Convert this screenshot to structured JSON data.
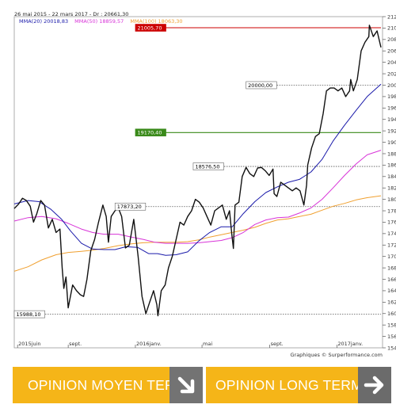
{
  "header": {
    "date_range": "26 mai 2015 - 22 mars 2017 - Dr : 20661,30",
    "legend": [
      {
        "label": "MMA(20)",
        "value": "20018,83",
        "color": "#1a1aaa"
      },
      {
        "label": "MMA(50)",
        "value": "18859,57",
        "color": "#d833d8"
      },
      {
        "label": "MMA(100)",
        "value": "18063,30",
        "color": "#f0a030"
      }
    ]
  },
  "credit": "Graphiques © Surperformance.com",
  "chart_data": {
    "type": "line",
    "title": "",
    "xlabel": "",
    "ylabel": "",
    "ylim": [
      15400,
      21200
    ],
    "y_ticks": [
      15400,
      15600,
      15800,
      16000,
      16200,
      16400,
      16600,
      16800,
      17000,
      17200,
      17400,
      17600,
      17800,
      18000,
      18200,
      18400,
      18600,
      18800,
      19000,
      19200,
      19400,
      19600,
      19800,
      20000,
      20200,
      20400,
      20600,
      20800,
      21000,
      21200
    ],
    "y_tick_labels": [
      "15400",
      "15600",
      "15800",
      "16000",
      "16200",
      "16400",
      "16600",
      "16800",
      "17000",
      "17200",
      "17400",
      "17600",
      "17800",
      "18000",
      "18200",
      "18400",
      "18600",
      "18800",
      "19000",
      "19200",
      "19400",
      "19600",
      "19800",
      "20000",
      "20200",
      "20400",
      "20600",
      "20800",
      "21000",
      "21200"
    ],
    "x_range": [
      "2015-05-26",
      "2017-03-22"
    ],
    "x_ticks": [
      {
        "date": "2015-06-01",
        "label": "2015juin"
      },
      {
        "date": "2015-09-01",
        "label": "sept."
      },
      {
        "date": "2016-01-01",
        "label": "2016janv."
      },
      {
        "date": "2016-05-01",
        "label": "mai"
      },
      {
        "date": "2016-09-01",
        "label": "sept."
      },
      {
        "date": "2017-01-01",
        "label": "2017janv."
      }
    ],
    "grid": false,
    "series": [
      {
        "name": "",
        "color": "#111111",
        "points": [
          [
            "2015-05-26",
            17840
          ],
          [
            "2015-06-03",
            17920
          ],
          [
            "2015-06-10",
            18020
          ],
          [
            "2015-06-17",
            17980
          ],
          [
            "2015-06-24",
            17880
          ],
          [
            "2015-06-30",
            17600
          ],
          [
            "2015-07-06",
            17750
          ],
          [
            "2015-07-13",
            17980
          ],
          [
            "2015-07-20",
            17900
          ],
          [
            "2015-07-27",
            17500
          ],
          [
            "2015-08-03",
            17650
          ],
          [
            "2015-08-10",
            17420
          ],
          [
            "2015-08-17",
            17480
          ],
          [
            "2015-08-21",
            16800
          ],
          [
            "2015-08-24",
            16440
          ],
          [
            "2015-08-28",
            16640
          ],
          [
            "2015-09-01",
            16100
          ],
          [
            "2015-09-09",
            16500
          ],
          [
            "2015-09-16",
            16400
          ],
          [
            "2015-09-23",
            16330
          ],
          [
            "2015-09-29",
            16300
          ],
          [
            "2015-10-05",
            16600
          ],
          [
            "2015-10-12",
            17100
          ],
          [
            "2015-10-19",
            17300
          ],
          [
            "2015-10-26",
            17600
          ],
          [
            "2015-11-03",
            17900
          ],
          [
            "2015-11-09",
            17700
          ],
          [
            "2015-11-13",
            17250
          ],
          [
            "2015-11-18",
            17700
          ],
          [
            "2015-11-25",
            17800
          ],
          [
            "2015-12-01",
            17850
          ],
          [
            "2015-12-07",
            17700
          ],
          [
            "2015-12-14",
            17150
          ],
          [
            "2015-12-21",
            17200
          ],
          [
            "2015-12-29",
            17650
          ],
          [
            "2016-01-06",
            17000
          ],
          [
            "2016-01-13",
            16300
          ],
          [
            "2016-01-20",
            16000
          ],
          [
            "2016-01-27",
            16200
          ],
          [
            "2016-02-03",
            16400
          ],
          [
            "2016-02-09",
            16150
          ],
          [
            "2016-02-11",
            15960
          ],
          [
            "2016-02-17",
            16400
          ],
          [
            "2016-02-24",
            16500
          ],
          [
            "2016-03-01",
            16800
          ],
          [
            "2016-03-08",
            17000
          ],
          [
            "2016-03-15",
            17300
          ],
          [
            "2016-03-22",
            17600
          ],
          [
            "2016-03-29",
            17550
          ],
          [
            "2016-04-05",
            17700
          ],
          [
            "2016-04-12",
            17800
          ],
          [
            "2016-04-19",
            18000
          ],
          [
            "2016-04-26",
            17950
          ],
          [
            "2016-05-03",
            17850
          ],
          [
            "2016-05-10",
            17700
          ],
          [
            "2016-05-17",
            17550
          ],
          [
            "2016-05-24",
            17800
          ],
          [
            "2016-05-31",
            17850
          ],
          [
            "2016-06-07",
            17900
          ],
          [
            "2016-06-14",
            17650
          ],
          [
            "2016-06-20",
            17800
          ],
          [
            "2016-06-24",
            17400
          ],
          [
            "2016-06-27",
            17140
          ],
          [
            "2016-06-30",
            17900
          ],
          [
            "2016-07-07",
            17950
          ],
          [
            "2016-07-13",
            18400
          ],
          [
            "2016-07-20",
            18560
          ],
          [
            "2016-07-27",
            18450
          ],
          [
            "2016-08-03",
            18400
          ],
          [
            "2016-08-10",
            18550
          ],
          [
            "2016-08-17",
            18560
          ],
          [
            "2016-08-24",
            18500
          ],
          [
            "2016-08-31",
            18420
          ],
          [
            "2016-09-07",
            18530
          ],
          [
            "2016-09-09",
            18100
          ],
          [
            "2016-09-14",
            18050
          ],
          [
            "2016-09-21",
            18300
          ],
          [
            "2016-09-28",
            18250
          ],
          [
            "2016-10-05",
            18200
          ],
          [
            "2016-10-12",
            18150
          ],
          [
            "2016-10-19",
            18200
          ],
          [
            "2016-10-26",
            18150
          ],
          [
            "2016-11-02",
            17900
          ],
          [
            "2016-11-07",
            18250
          ],
          [
            "2016-11-09",
            18600
          ],
          [
            "2016-11-16",
            18900
          ],
          [
            "2016-11-23",
            19100
          ],
          [
            "2016-11-30",
            19150
          ],
          [
            "2016-12-07",
            19500
          ],
          [
            "2016-12-13",
            19900
          ],
          [
            "2016-12-20",
            19950
          ],
          [
            "2016-12-27",
            19950
          ],
          [
            "2017-01-03",
            19900
          ],
          [
            "2017-01-10",
            19950
          ],
          [
            "2017-01-17",
            19800
          ],
          [
            "2017-01-24",
            19900
          ],
          [
            "2017-01-26",
            20100
          ],
          [
            "2017-01-31",
            19900
          ],
          [
            "2017-02-07",
            20100
          ],
          [
            "2017-02-14",
            20600
          ],
          [
            "2017-02-21",
            20750
          ],
          [
            "2017-02-28",
            20850
          ],
          [
            "2017-03-01",
            21050
          ],
          [
            "2017-03-08",
            20850
          ],
          [
            "2017-03-15",
            20950
          ],
          [
            "2017-03-22",
            20661
          ]
        ]
      },
      {
        "name": "MMA(20)",
        "color": "#1a1aaa",
        "points": [
          [
            "2015-05-26",
            17920
          ],
          [
            "2015-06-20",
            17980
          ],
          [
            "2015-07-10",
            17960
          ],
          [
            "2015-07-31",
            17830
          ],
          [
            "2015-08-20",
            17650
          ],
          [
            "2015-09-05",
            17450
          ],
          [
            "2015-09-25",
            17230
          ],
          [
            "2015-10-15",
            17130
          ],
          [
            "2015-11-05",
            17120
          ],
          [
            "2015-11-25",
            17120
          ],
          [
            "2015-12-15",
            17170
          ],
          [
            "2016-01-05",
            17160
          ],
          [
            "2016-01-25",
            17050
          ],
          [
            "2016-02-10",
            17050
          ],
          [
            "2016-02-25",
            17020
          ],
          [
            "2016-03-15",
            17030
          ],
          [
            "2016-04-05",
            17080
          ],
          [
            "2016-04-25",
            17270
          ],
          [
            "2016-05-15",
            17420
          ],
          [
            "2016-06-05",
            17520
          ],
          [
            "2016-06-25",
            17520
          ],
          [
            "2016-07-15",
            17750
          ],
          [
            "2016-08-05",
            17960
          ],
          [
            "2016-08-25",
            18120
          ],
          [
            "2016-09-15",
            18220
          ],
          [
            "2016-10-05",
            18300
          ],
          [
            "2016-10-25",
            18350
          ],
          [
            "2016-11-15",
            18480
          ],
          [
            "2016-12-05",
            18700
          ],
          [
            "2016-12-25",
            19020
          ],
          [
            "2017-01-15",
            19300
          ],
          [
            "2017-02-05",
            19560
          ],
          [
            "2017-02-25",
            19800
          ],
          [
            "2017-03-22",
            20018
          ]
        ]
      },
      {
        "name": "MMA(50)",
        "color": "#d833d8",
        "points": [
          [
            "2015-05-26",
            17620
          ],
          [
            "2015-06-20",
            17680
          ],
          [
            "2015-07-15",
            17700
          ],
          [
            "2015-08-10",
            17660
          ],
          [
            "2015-09-01",
            17580
          ],
          [
            "2015-09-25",
            17480
          ],
          [
            "2015-10-15",
            17420
          ],
          [
            "2015-11-05",
            17390
          ],
          [
            "2015-12-01",
            17390
          ],
          [
            "2015-12-25",
            17340
          ],
          [
            "2016-01-15",
            17300
          ],
          [
            "2016-02-05",
            17250
          ],
          [
            "2016-02-25",
            17230
          ],
          [
            "2016-03-15",
            17230
          ],
          [
            "2016-04-05",
            17230
          ],
          [
            "2016-04-25",
            17240
          ],
          [
            "2016-05-15",
            17260
          ],
          [
            "2016-06-05",
            17280
          ],
          [
            "2016-06-25",
            17330
          ],
          [
            "2016-07-15",
            17420
          ],
          [
            "2016-08-05",
            17560
          ],
          [
            "2016-08-25",
            17640
          ],
          [
            "2016-09-15",
            17680
          ],
          [
            "2016-10-05",
            17690
          ],
          [
            "2016-10-25",
            17760
          ],
          [
            "2016-11-15",
            17850
          ],
          [
            "2016-12-05",
            18000
          ],
          [
            "2016-12-25",
            18200
          ],
          [
            "2017-01-15",
            18420
          ],
          [
            "2017-02-05",
            18620
          ],
          [
            "2017-02-25",
            18780
          ],
          [
            "2017-03-22",
            18860
          ]
        ]
      },
      {
        "name": "MMA(100)",
        "color": "#f0a030",
        "points": [
          [
            "2015-05-26",
            16740
          ],
          [
            "2015-06-20",
            16820
          ],
          [
            "2015-07-15",
            16940
          ],
          [
            "2015-08-10",
            17030
          ],
          [
            "2015-09-01",
            17070
          ],
          [
            "2015-09-25",
            17090
          ],
          [
            "2015-10-15",
            17110
          ],
          [
            "2015-11-05",
            17140
          ],
          [
            "2015-12-01",
            17190
          ],
          [
            "2015-12-25",
            17220
          ],
          [
            "2016-01-15",
            17240
          ],
          [
            "2016-02-05",
            17250
          ],
          [
            "2016-02-25",
            17250
          ],
          [
            "2016-03-15",
            17250
          ],
          [
            "2016-04-05",
            17260
          ],
          [
            "2016-04-25",
            17290
          ],
          [
            "2016-05-15",
            17340
          ],
          [
            "2016-06-05",
            17380
          ],
          [
            "2016-06-25",
            17420
          ],
          [
            "2016-07-15",
            17460
          ],
          [
            "2016-08-05",
            17510
          ],
          [
            "2016-08-25",
            17580
          ],
          [
            "2016-09-15",
            17640
          ],
          [
            "2016-10-05",
            17660
          ],
          [
            "2016-10-25",
            17700
          ],
          [
            "2016-11-15",
            17740
          ],
          [
            "2016-12-05",
            17810
          ],
          [
            "2016-12-25",
            17880
          ],
          [
            "2017-01-15",
            17930
          ],
          [
            "2017-02-05",
            17990
          ],
          [
            "2017-02-25",
            18030
          ],
          [
            "2017-03-22",
            18063
          ]
        ]
      }
    ],
    "levels": [
      {
        "value": 21005.7,
        "label": "21005,70",
        "line_color": "#cc0000",
        "tag_bg": "#cc0000",
        "tag_fg": "#ffffff",
        "style": "solid",
        "from_date": "2016-01-01"
      },
      {
        "value": 20000.0,
        "label": "20000,00",
        "line_color": "#555555",
        "tag_bg": "#ffffff",
        "tag_fg": "#000000",
        "style": "dotted",
        "from_date": "2016-07-20"
      },
      {
        "value": 19170.4,
        "label": "19170,40",
        "line_color": "#3a8a1a",
        "tag_bg": "#3a8a1a",
        "tag_fg": "#ffffff",
        "style": "solid",
        "from_date": "2016-01-01"
      },
      {
        "value": 18576.5,
        "label": "18576,50",
        "line_color": "#555555",
        "tag_bg": "#ffffff",
        "tag_fg": "#000000",
        "style": "dotted",
        "from_date": "2016-04-15"
      },
      {
        "value": 17873.2,
        "label": "17873,20",
        "line_color": "#555555",
        "tag_bg": "#ffffff",
        "tag_fg": "#000000",
        "style": "dotted",
        "from_date": "2015-11-25"
      },
      {
        "value": 15988.1,
        "label": "15988,10",
        "line_color": "#555555",
        "tag_bg": "#ffffff",
        "tag_fg": "#000000",
        "style": "dotted",
        "from_date": "2015-05-26"
      }
    ]
  },
  "banners": [
    {
      "label": "OPINION MOYEN TERME",
      "arrow_icon": "arrow-down-right-icon"
    },
    {
      "label": "OPINION LONG TERME",
      "arrow_icon": "arrow-right-icon"
    }
  ]
}
